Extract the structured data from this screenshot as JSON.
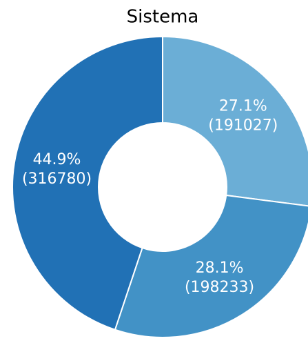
{
  "chart_data": {
    "type": "pie",
    "title": "Sistema",
    "values": [
      191027,
      198233,
      316780
    ],
    "percent_labels": [
      "27.1%",
      "28.1%",
      "44.9%"
    ],
    "value_labels": [
      "(191027)",
      "(198233)",
      "(316780)"
    ],
    "colors": [
      "#6baed6",
      "#4292c6",
      "#2171b5"
    ],
    "donut": true
  }
}
